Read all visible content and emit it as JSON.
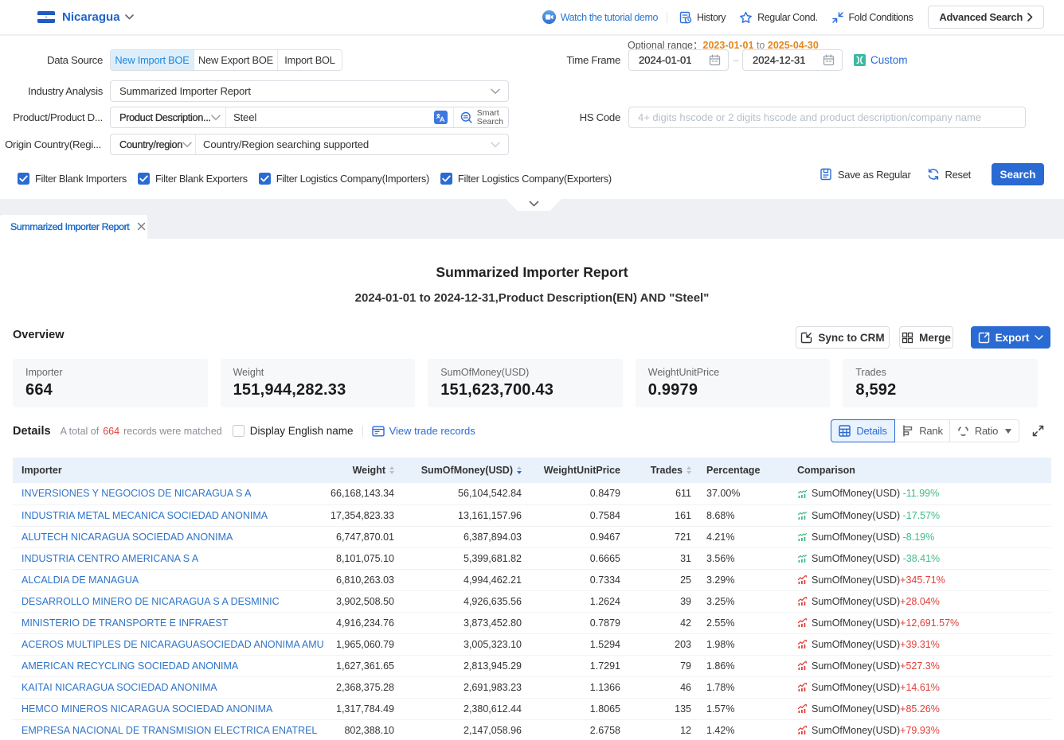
{
  "topbar": {
    "country": "Nicaragua",
    "tutorial": "Watch the tutorial demo",
    "history": "History",
    "regular": "Regular Cond.",
    "fold": "Fold Conditions",
    "advanced": "Advanced Search"
  },
  "filter": {
    "data_source_label": "Data Source",
    "data_source_tabs": [
      "New Import BOE",
      "New Export BOE",
      "Import BOL"
    ],
    "data_source_active": 0,
    "industry_label": "Industry Analysis",
    "industry_value": "Summarized Importer Report",
    "product_label": "Product/Product D...",
    "product_select": "Product Description...",
    "product_value": "Steel",
    "smart_search_line1": "Smart",
    "smart_search_line2": "Search",
    "origin_label": "Origin Country(Regi...",
    "origin_select": "Country/region",
    "origin_placeholder": "Country/Region searching supported",
    "time_label": "Time Frame",
    "optional_prefix": "Optional range：",
    "optional_from": "2023-01-01",
    "optional_word_to": "to",
    "optional_to": "2025-04-30",
    "date_from": "2024-01-01",
    "date_to": "2024-12-31",
    "custom": "Custom",
    "hs_label": "HS Code",
    "hs_placeholder": "4+ digits hscode or 2 digits hscode and product description/company name",
    "checkboxes": [
      {
        "label": "Filter Blank Importers",
        "checked": true
      },
      {
        "label": "Filter Blank Exporters",
        "checked": true
      },
      {
        "label": "Filter Logistics Company(Importers)",
        "checked": true
      },
      {
        "label": "Filter Logistics Company(Exporters)",
        "checked": true
      }
    ],
    "save_regular": "Save as Regular",
    "reset": "Reset",
    "search": "Search"
  },
  "tabstrip": {
    "tab": "Summarized Importer Report"
  },
  "report": {
    "title": "Summarized Importer Report",
    "subtitle": "2024-01-01 to 2024-12-31,Product Description(EN) AND \"Steel\"",
    "overview_label": "Overview",
    "sync_btn": "Sync to CRM",
    "merge_btn": "Merge",
    "export_btn": "Export",
    "stats": [
      {
        "label": "Importer",
        "value": "664"
      },
      {
        "label": "Weight",
        "value": "151,944,282.33"
      },
      {
        "label": "SumOfMoney(USD)",
        "value": "151,623,700.43"
      },
      {
        "label": "WeightUnitPrice",
        "value": "0.9979"
      },
      {
        "label": "Trades",
        "value": "8,592"
      }
    ]
  },
  "details": {
    "label": "Details",
    "total_prefix": "A total of",
    "total_count": "664",
    "total_suffix": "records were matched",
    "display_english": "Display English name",
    "view_trade": "View trade records",
    "view_modes": [
      "Details",
      "Rank",
      "Ratio"
    ],
    "view_mode_active": 0
  },
  "table": {
    "columns": [
      {
        "label": "Importer",
        "align": "left",
        "sortable": false
      },
      {
        "label": "Weight",
        "align": "right",
        "sortable": true,
        "sorted": null
      },
      {
        "label": "SumOfMoney(USD)",
        "align": "right",
        "sortable": true,
        "sorted": "desc"
      },
      {
        "label": "WeightUnitPrice",
        "align": "right",
        "sortable": false
      },
      {
        "label": "Trades",
        "align": "right",
        "sortable": true,
        "sorted": null
      },
      {
        "label": "Percentage",
        "align": "left",
        "sortable": false
      },
      {
        "label": "Comparison",
        "align": "left",
        "sortable": false
      }
    ],
    "rows": [
      {
        "importer": "INVERSIONES Y NEGOCIOS DE NICARAGUA S A",
        "weight": "66,168,143.34",
        "sum": "56,104,542.84",
        "unit_price": "0.8479",
        "trades": "611",
        "percentage": "37.00%",
        "cmp_metric": "SumOfMoney(USD)",
        "cmp_change": "-11.99%"
      },
      {
        "importer": "INDUSTRIA METAL MECANICA SOCIEDAD ANONIMA",
        "weight": "17,354,823.33",
        "sum": "13,161,157.96",
        "unit_price": "0.7584",
        "trades": "161",
        "percentage": "8.68%",
        "cmp_metric": "SumOfMoney(USD)",
        "cmp_change": "-17.57%"
      },
      {
        "importer": "ALUTECH NICARAGUA SOCIEDAD ANONIMA",
        "weight": "6,747,870.01",
        "sum": "6,387,894.03",
        "unit_price": "0.9467",
        "trades": "721",
        "percentage": "4.21%",
        "cmp_metric": "SumOfMoney(USD)",
        "cmp_change": "-8.19%"
      },
      {
        "importer": "INDUSTRIA CENTRO AMERICANA S A",
        "weight": "8,101,075.10",
        "sum": "5,399,681.82",
        "unit_price": "0.6665",
        "trades": "31",
        "percentage": "3.56%",
        "cmp_metric": "SumOfMoney(USD)",
        "cmp_change": "-38.41%"
      },
      {
        "importer": "ALCALDIA DE MANAGUA",
        "weight": "6,810,263.03",
        "sum": "4,994,462.21",
        "unit_price": "0.7334",
        "trades": "25",
        "percentage": "3.29%",
        "cmp_metric": "SumOfMoney(USD)",
        "cmp_change": "+345.71%"
      },
      {
        "importer": "DESARROLLO MINERO DE NICARAGUA S A DESMINIC",
        "weight": "3,902,508.50",
        "sum": "4,926,635.56",
        "unit_price": "1.2624",
        "trades": "39",
        "percentage": "3.25%",
        "cmp_metric": "SumOfMoney(USD)",
        "cmp_change": "+28.04%"
      },
      {
        "importer": "MINISTERIO DE TRANSPORTE E INFRAEST",
        "weight": "4,916,234.76",
        "sum": "3,873,452.80",
        "unit_price": "0.7879",
        "trades": "42",
        "percentage": "2.55%",
        "cmp_metric": "SumOfMoney(USD)",
        "cmp_change": "+12,691.57%"
      },
      {
        "importer": "ACEROS MULTIPLES DE NICARAGUASOCIEDAD ANONIMA AMU",
        "weight": "1,965,060.79",
        "sum": "3,005,323.10",
        "unit_price": "1.5294",
        "trades": "203",
        "percentage": "1.98%",
        "cmp_metric": "SumOfMoney(USD)",
        "cmp_change": "+39.31%"
      },
      {
        "importer": "AMERICAN RECYCLING SOCIEDAD ANONIMA",
        "weight": "1,627,361.65",
        "sum": "2,813,945.29",
        "unit_price": "1.7291",
        "trades": "79",
        "percentage": "1.86%",
        "cmp_metric": "SumOfMoney(USD)",
        "cmp_change": "+527.3%"
      },
      {
        "importer": "KAITAI NICARAGUA SOCIEDAD ANONIMA",
        "weight": "2,368,375.28",
        "sum": "2,691,983.23",
        "unit_price": "1.1366",
        "trades": "46",
        "percentage": "1.78%",
        "cmp_metric": "SumOfMoney(USD)",
        "cmp_change": "+14.61%"
      },
      {
        "importer": "HEMCO MINEROS NICARAGUA SOCIEDAD ANONIMA",
        "weight": "1,317,784.49",
        "sum": "2,380,612.44",
        "unit_price": "1.8065",
        "trades": "135",
        "percentage": "1.57%",
        "cmp_metric": "SumOfMoney(USD)",
        "cmp_change": "+85.26%"
      },
      {
        "importer": "EMPRESA NACIONAL DE TRANSMISION ELECTRICA ENATREL",
        "weight": "802,388.10",
        "sum": "2,147,058.96",
        "unit_price": "2.6758",
        "trades": "12",
        "percentage": "1.42%",
        "cmp_metric": "SumOfMoney(USD)",
        "cmp_change": "+79.93%"
      }
    ]
  }
}
